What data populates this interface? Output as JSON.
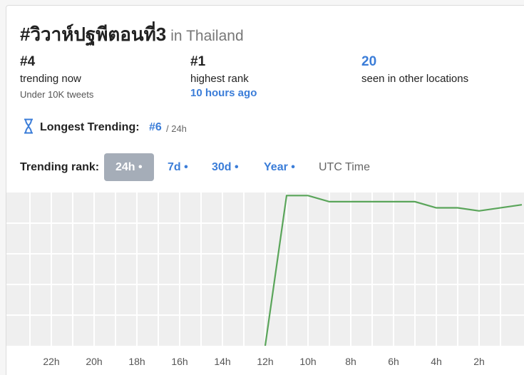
{
  "header": {
    "title": "#วิวาห์ปฐพีตอนที่3",
    "location": "in Thailand"
  },
  "stats": [
    {
      "value": "#4",
      "label": "trending now",
      "note": "Under 10K tweets"
    },
    {
      "value": "#1",
      "label": "highest rank",
      "note": "10 hours ago"
    },
    {
      "value": "20",
      "label": "seen in other locations"
    }
  ],
  "longest": {
    "label": "Longest Trending:",
    "rank": "#6",
    "period": "/ 24h"
  },
  "controls": {
    "label": "Trending rank:",
    "tabs": [
      "24h •",
      "7d •",
      "30d •",
      "Year •"
    ],
    "selected": 0,
    "timezone": "UTC Time"
  },
  "chart_data": {
    "type": "line",
    "x": [
      12,
      11,
      10,
      9,
      8,
      7,
      6,
      5,
      4,
      3,
      2,
      0
    ],
    "series": [
      {
        "color": "#5aa55a",
        "values": [
          50,
          1,
          1,
          3,
          3,
          3,
          3,
          3,
          5,
          5,
          6,
          4
        ]
      }
    ],
    "xlim": [
      24,
      0
    ],
    "xticks": [
      {
        "value": 22,
        "label": "22h"
      },
      {
        "value": 20,
        "label": "20h"
      },
      {
        "value": 18,
        "label": "18h"
      },
      {
        "value": 16,
        "label": "16h"
      },
      {
        "value": 14,
        "label": "14h"
      },
      {
        "value": 12,
        "label": "12h"
      },
      {
        "value": 10,
        "label": "10h"
      },
      {
        "value": 8,
        "label": "8h"
      },
      {
        "value": 6,
        "label": "6h"
      },
      {
        "value": 4,
        "label": "4h"
      },
      {
        "value": 2,
        "label": "2h"
      }
    ],
    "minor_xticks": [
      23,
      21,
      19,
      17,
      15,
      13,
      11,
      9,
      7,
      5,
      3,
      1
    ],
    "ylim": [
      50,
      0
    ],
    "yticks": [
      10,
      20,
      30,
      40
    ],
    "grid": true
  }
}
